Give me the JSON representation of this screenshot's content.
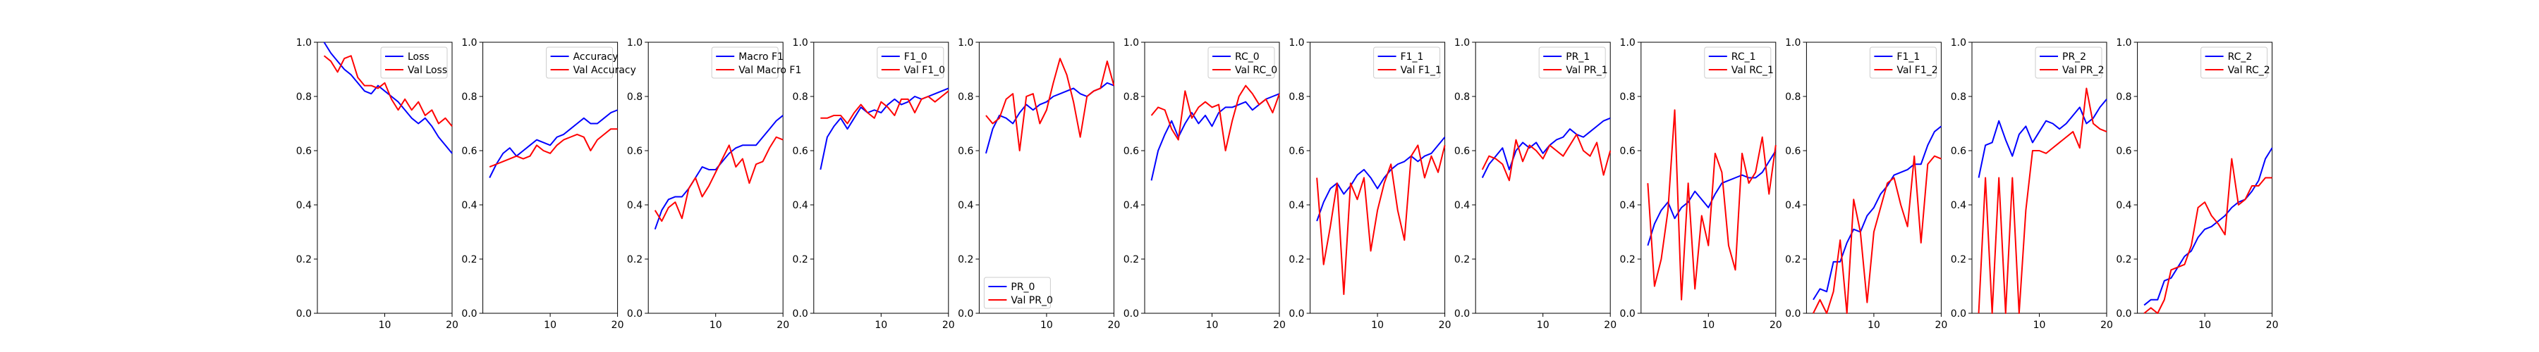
{
  "colors": {
    "train": "#0000ff",
    "val": "#ff0000"
  },
  "chart_data": [
    {
      "type": "line",
      "title": "",
      "xlabel": "",
      "ylabel": "",
      "xlim": [
        0,
        20
      ],
      "ylim": [
        0.0,
        1.0
      ],
      "grid": false,
      "legend": "top-right",
      "x_ticks": [
        "10",
        "20"
      ],
      "y_ticks": [
        "0.0",
        "0.2",
        "0.4",
        "0.6",
        "0.8",
        "1.0"
      ],
      "x": [
        1,
        2,
        3,
        4,
        5,
        6,
        7,
        8,
        9,
        10,
        11,
        12,
        13,
        14,
        15,
        16,
        17,
        18,
        19,
        20
      ],
      "series": [
        {
          "name": "Loss",
          "values": [
            1.0,
            0.96,
            0.93,
            0.9,
            0.88,
            0.85,
            0.82,
            0.81,
            0.84,
            0.82,
            0.8,
            0.78,
            0.75,
            0.72,
            0.7,
            0.72,
            0.69,
            0.65,
            0.62,
            0.59
          ]
        },
        {
          "name": "Val Loss",
          "values": [
            0.95,
            0.93,
            0.89,
            0.94,
            0.95,
            0.87,
            0.84,
            0.84,
            0.83,
            0.85,
            0.79,
            0.75,
            0.79,
            0.75,
            0.78,
            0.73,
            0.75,
            0.7,
            0.72,
            0.69
          ]
        }
      ]
    },
    {
      "type": "line",
      "title": "",
      "xlabel": "",
      "ylabel": "",
      "xlim": [
        0,
        20
      ],
      "ylim": [
        0.0,
        1.0
      ],
      "grid": false,
      "legend": "top-right",
      "x_ticks": [
        "10",
        "20"
      ],
      "y_ticks": [
        "0.0",
        "0.2",
        "0.4",
        "0.6",
        "0.8",
        "1.0"
      ],
      "x": [
        1,
        2,
        3,
        4,
        5,
        6,
        7,
        8,
        9,
        10,
        11,
        12,
        13,
        14,
        15,
        16,
        17,
        18,
        19,
        20
      ],
      "series": [
        {
          "name": "Accuracy",
          "values": [
            0.5,
            0.55,
            0.59,
            0.61,
            0.58,
            0.6,
            0.62,
            0.64,
            0.63,
            0.62,
            0.65,
            0.66,
            0.68,
            0.7,
            0.72,
            0.7,
            0.7,
            0.72,
            0.74,
            0.75
          ]
        },
        {
          "name": "Val Accuracy",
          "values": [
            0.54,
            0.55,
            0.56,
            0.57,
            0.58,
            0.57,
            0.58,
            0.62,
            0.6,
            0.59,
            0.62,
            0.64,
            0.65,
            0.66,
            0.65,
            0.6,
            0.64,
            0.66,
            0.68,
            0.68
          ]
        }
      ]
    },
    {
      "type": "line",
      "title": "",
      "xlabel": "",
      "ylabel": "",
      "xlim": [
        0,
        20
      ],
      "ylim": [
        0.0,
        1.0
      ],
      "grid": false,
      "legend": "top-right",
      "x_ticks": [
        "10",
        "20"
      ],
      "y_ticks": [
        "0.0",
        "0.2",
        "0.4",
        "0.6",
        "0.8",
        "1.0"
      ],
      "x": [
        1,
        2,
        3,
        4,
        5,
        6,
        7,
        8,
        9,
        10,
        11,
        12,
        13,
        14,
        15,
        16,
        17,
        18,
        19,
        20
      ],
      "series": [
        {
          "name": "Macro F1",
          "values": [
            0.31,
            0.38,
            0.42,
            0.43,
            0.43,
            0.46,
            0.5,
            0.54,
            0.53,
            0.53,
            0.56,
            0.59,
            0.61,
            0.62,
            0.62,
            0.62,
            0.65,
            0.68,
            0.71,
            0.73
          ]
        },
        {
          "name": "Val Macro F1",
          "values": [
            0.38,
            0.34,
            0.39,
            0.41,
            0.35,
            0.46,
            0.5,
            0.43,
            0.47,
            0.52,
            0.57,
            0.62,
            0.54,
            0.57,
            0.48,
            0.55,
            0.56,
            0.61,
            0.65,
            0.64
          ]
        }
      ]
    },
    {
      "type": "line",
      "title": "",
      "xlabel": "",
      "ylabel": "",
      "xlim": [
        0,
        20
      ],
      "ylim": [
        0.0,
        1.0
      ],
      "grid": false,
      "legend": "top-right",
      "x_ticks": [
        "10",
        "20"
      ],
      "y_ticks": [
        "0.0",
        "0.2",
        "0.4",
        "0.6",
        "0.8",
        "1.0"
      ],
      "x": [
        1,
        2,
        3,
        4,
        5,
        6,
        7,
        8,
        9,
        10,
        11,
        12,
        13,
        14,
        15,
        16,
        17,
        18,
        19,
        20
      ],
      "series": [
        {
          "name": "F1_0",
          "values": [
            0.53,
            0.65,
            0.69,
            0.72,
            0.68,
            0.72,
            0.76,
            0.74,
            0.75,
            0.74,
            0.77,
            0.79,
            0.77,
            0.78,
            0.8,
            0.79,
            0.8,
            0.81,
            0.82,
            0.83
          ]
        },
        {
          "name": "Val F1_0",
          "values": [
            0.72,
            0.72,
            0.73,
            0.73,
            0.7,
            0.74,
            0.77,
            0.74,
            0.72,
            0.78,
            0.76,
            0.73,
            0.79,
            0.79,
            0.74,
            0.79,
            0.8,
            0.78,
            0.8,
            0.82
          ]
        }
      ]
    },
    {
      "type": "line",
      "title": "",
      "xlabel": "",
      "ylabel": "",
      "xlim": [
        0,
        20
      ],
      "ylim": [
        0.0,
        1.0
      ],
      "grid": false,
      "legend": "bottom-left",
      "x_ticks": [
        "10",
        "20"
      ],
      "y_ticks": [
        "0.0",
        "0.2",
        "0.4",
        "0.6",
        "0.8",
        "1.0"
      ],
      "x": [
        1,
        2,
        3,
        4,
        5,
        6,
        7,
        8,
        9,
        10,
        11,
        12,
        13,
        14,
        15,
        16,
        17,
        18,
        19,
        20
      ],
      "series": [
        {
          "name": "PR_0",
          "values": [
            0.59,
            0.68,
            0.73,
            0.72,
            0.7,
            0.74,
            0.77,
            0.75,
            0.77,
            0.78,
            0.8,
            0.81,
            0.82,
            0.83,
            0.81,
            0.8,
            0.82,
            0.83,
            0.85,
            0.84
          ]
        },
        {
          "name": "Val PR_0",
          "values": [
            0.73,
            0.7,
            0.72,
            0.79,
            0.81,
            0.6,
            0.8,
            0.81,
            0.7,
            0.75,
            0.85,
            0.94,
            0.88,
            0.78,
            0.65,
            0.8,
            0.82,
            0.83,
            0.93,
            0.84
          ]
        }
      ]
    },
    {
      "type": "line",
      "title": "",
      "xlabel": "",
      "ylabel": "",
      "xlim": [
        0,
        20
      ],
      "ylim": [
        0.0,
        1.0
      ],
      "grid": false,
      "legend": "top-right",
      "x_ticks": [
        "10",
        "20"
      ],
      "y_ticks": [
        "0.0",
        "0.2",
        "0.4",
        "0.6",
        "0.8",
        "1.0"
      ],
      "x": [
        1,
        2,
        3,
        4,
        5,
        6,
        7,
        8,
        9,
        10,
        11,
        12,
        13,
        14,
        15,
        16,
        17,
        18,
        19,
        20
      ],
      "series": [
        {
          "name": "RC_0",
          "values": [
            0.49,
            0.6,
            0.66,
            0.71,
            0.65,
            0.7,
            0.74,
            0.7,
            0.73,
            0.69,
            0.74,
            0.76,
            0.76,
            0.77,
            0.78,
            0.75,
            0.77,
            0.79,
            0.8,
            0.81
          ]
        },
        {
          "name": "Val RC_0",
          "values": [
            0.73,
            0.76,
            0.75,
            0.68,
            0.64,
            0.82,
            0.72,
            0.76,
            0.78,
            0.76,
            0.77,
            0.6,
            0.71,
            0.8,
            0.84,
            0.81,
            0.77,
            0.79,
            0.74,
            0.81
          ]
        }
      ]
    },
    {
      "type": "line",
      "title": "",
      "xlabel": "",
      "ylabel": "",
      "xlim": [
        0,
        20
      ],
      "ylim": [
        0.0,
        1.0
      ],
      "grid": false,
      "legend": "top-right",
      "x_ticks": [
        "10",
        "20"
      ],
      "y_ticks": [
        "0.0",
        "0.2",
        "0.4",
        "0.6",
        "0.8",
        "1.0"
      ],
      "x": [
        1,
        2,
        3,
        4,
        5,
        6,
        7,
        8,
        9,
        10,
        11,
        12,
        13,
        14,
        15,
        16,
        17,
        18,
        19,
        20
      ],
      "series": [
        {
          "name": "F1_1",
          "values": [
            0.34,
            0.41,
            0.46,
            0.48,
            0.44,
            0.47,
            0.51,
            0.53,
            0.5,
            0.46,
            0.5,
            0.53,
            0.55,
            0.56,
            0.58,
            0.56,
            0.58,
            0.59,
            0.62,
            0.65
          ]
        },
        {
          "name": "Val F1_1",
          "values": [
            0.5,
            0.18,
            0.32,
            0.48,
            0.07,
            0.48,
            0.42,
            0.5,
            0.23,
            0.38,
            0.48,
            0.55,
            0.38,
            0.27,
            0.58,
            0.62,
            0.5,
            0.58,
            0.52,
            0.62
          ]
        }
      ]
    },
    {
      "type": "line",
      "title": "",
      "xlabel": "",
      "ylabel": "",
      "xlim": [
        0,
        20
      ],
      "ylim": [
        0.0,
        1.0
      ],
      "grid": false,
      "legend": "top-right",
      "x_ticks": [
        "10",
        "20"
      ],
      "y_ticks": [
        "0.0",
        "0.2",
        "0.4",
        "0.6",
        "0.8",
        "1.0"
      ],
      "x": [
        1,
        2,
        3,
        4,
        5,
        6,
        7,
        8,
        9,
        10,
        11,
        12,
        13,
        14,
        15,
        16,
        17,
        18,
        19,
        20
      ],
      "series": [
        {
          "name": "PR_1",
          "values": [
            0.5,
            0.55,
            0.58,
            0.61,
            0.53,
            0.6,
            0.63,
            0.61,
            0.63,
            0.59,
            0.62,
            0.64,
            0.65,
            0.68,
            0.66,
            0.65,
            0.67,
            0.69,
            0.71,
            0.72
          ]
        },
        {
          "name": "Val PR_1",
          "values": [
            0.53,
            0.58,
            0.57,
            0.55,
            0.49,
            0.64,
            0.56,
            0.62,
            0.6,
            0.57,
            0.62,
            0.6,
            0.58,
            0.62,
            0.66,
            0.6,
            0.58,
            0.63,
            0.51,
            0.6
          ]
        }
      ]
    },
    {
      "type": "line",
      "title": "",
      "xlabel": "",
      "ylabel": "",
      "xlim": [
        0,
        20
      ],
      "ylim": [
        0.0,
        1.0
      ],
      "grid": false,
      "legend": "top-right",
      "x_ticks": [
        "10",
        "20"
      ],
      "y_ticks": [
        "0.0",
        "0.2",
        "0.4",
        "0.6",
        "0.8",
        "1.0"
      ],
      "x": [
        1,
        2,
        3,
        4,
        5,
        6,
        7,
        8,
        9,
        10,
        11,
        12,
        13,
        14,
        15,
        16,
        17,
        18,
        19,
        20
      ],
      "series": [
        {
          "name": "RC_1",
          "values": [
            0.25,
            0.33,
            0.38,
            0.41,
            0.35,
            0.39,
            0.41,
            0.45,
            0.42,
            0.39,
            0.44,
            0.48,
            0.49,
            0.5,
            0.51,
            0.5,
            0.5,
            0.52,
            0.56,
            0.6
          ]
        },
        {
          "name": "Val RC_1",
          "values": [
            0.48,
            0.1,
            0.2,
            0.38,
            0.75,
            0.05,
            0.48,
            0.09,
            0.36,
            0.25,
            0.59,
            0.52,
            0.25,
            0.16,
            0.59,
            0.48,
            0.52,
            0.65,
            0.44,
            0.62
          ]
        }
      ]
    },
    {
      "type": "line",
      "title": "",
      "xlabel": "",
      "ylabel": "",
      "xlim": [
        0,
        20
      ],
      "ylim": [
        0.0,
        1.0
      ],
      "grid": false,
      "legend": "top-right",
      "x_ticks": [
        "10",
        "20"
      ],
      "y_ticks": [
        "0.0",
        "0.2",
        "0.4",
        "0.6",
        "0.8",
        "1.0"
      ],
      "x": [
        1,
        2,
        3,
        4,
        5,
        6,
        7,
        8,
        9,
        10,
        11,
        12,
        13,
        14,
        15,
        16,
        17,
        18,
        19,
        20
      ],
      "series": [
        {
          "name": "F1_1",
          "values": [
            0.05,
            0.09,
            0.08,
            0.19,
            0.19,
            0.26,
            0.31,
            0.3,
            0.36,
            0.39,
            0.44,
            0.47,
            0.51,
            0.52,
            0.53,
            0.55,
            0.55,
            0.62,
            0.67,
            0.69
          ]
        },
        {
          "name": "Val F1_2",
          "values": [
            0.0,
            0.05,
            0.0,
            0.08,
            0.27,
            0.0,
            0.42,
            0.3,
            0.04,
            0.3,
            0.39,
            0.48,
            0.5,
            0.4,
            0.32,
            0.58,
            0.26,
            0.55,
            0.58,
            0.57
          ]
        }
      ]
    },
    {
      "type": "line",
      "title": "",
      "xlabel": "",
      "ylabel": "",
      "xlim": [
        0,
        20
      ],
      "ylim": [
        0.0,
        1.0
      ],
      "grid": false,
      "legend": "top-right",
      "x_ticks": [
        "10",
        "20"
      ],
      "y_ticks": [
        "0.0",
        "0.2",
        "0.4",
        "0.6",
        "0.8",
        "1.0"
      ],
      "x": [
        1,
        2,
        3,
        4,
        5,
        6,
        7,
        8,
        9,
        10,
        11,
        12,
        13,
        14,
        15,
        16,
        17,
        18,
        19,
        20
      ],
      "series": [
        {
          "name": "PR_2",
          "values": [
            0.5,
            0.62,
            0.63,
            0.71,
            0.64,
            0.58,
            0.66,
            0.69,
            0.63,
            0.67,
            0.71,
            0.7,
            0.68,
            0.7,
            0.73,
            0.76,
            0.7,
            0.72,
            0.76,
            0.79
          ]
        },
        {
          "name": "Val PR_2",
          "values": [
            0.0,
            0.5,
            0.0,
            0.5,
            0.0,
            0.5,
            0.0,
            0.38,
            0.6,
            0.6,
            0.59,
            0.61,
            0.63,
            0.65,
            0.67,
            0.61,
            0.83,
            0.7,
            0.68,
            0.67
          ]
        }
      ]
    },
    {
      "type": "line",
      "title": "",
      "xlabel": "",
      "ylabel": "",
      "xlim": [
        0,
        20
      ],
      "ylim": [
        0.0,
        1.0
      ],
      "grid": false,
      "legend": "top-right",
      "x_ticks": [
        "10",
        "20"
      ],
      "y_ticks": [
        "0.0",
        "0.2",
        "0.4",
        "0.6",
        "0.8",
        "1.0"
      ],
      "x": [
        1,
        2,
        3,
        4,
        5,
        6,
        7,
        8,
        9,
        10,
        11,
        12,
        13,
        14,
        15,
        16,
        17,
        18,
        19,
        20
      ],
      "series": [
        {
          "name": "RC_2",
          "values": [
            0.03,
            0.05,
            0.05,
            0.12,
            0.13,
            0.17,
            0.21,
            0.23,
            0.28,
            0.31,
            0.32,
            0.34,
            0.36,
            0.39,
            0.41,
            0.42,
            0.45,
            0.49,
            0.57,
            0.61
          ]
        },
        {
          "name": "Val RC_2",
          "values": [
            0.0,
            0.02,
            0.0,
            0.05,
            0.16,
            0.17,
            0.18,
            0.25,
            0.39,
            0.41,
            0.36,
            0.33,
            0.29,
            0.57,
            0.4,
            0.42,
            0.47,
            0.47,
            0.5,
            0.5
          ]
        }
      ]
    }
  ]
}
